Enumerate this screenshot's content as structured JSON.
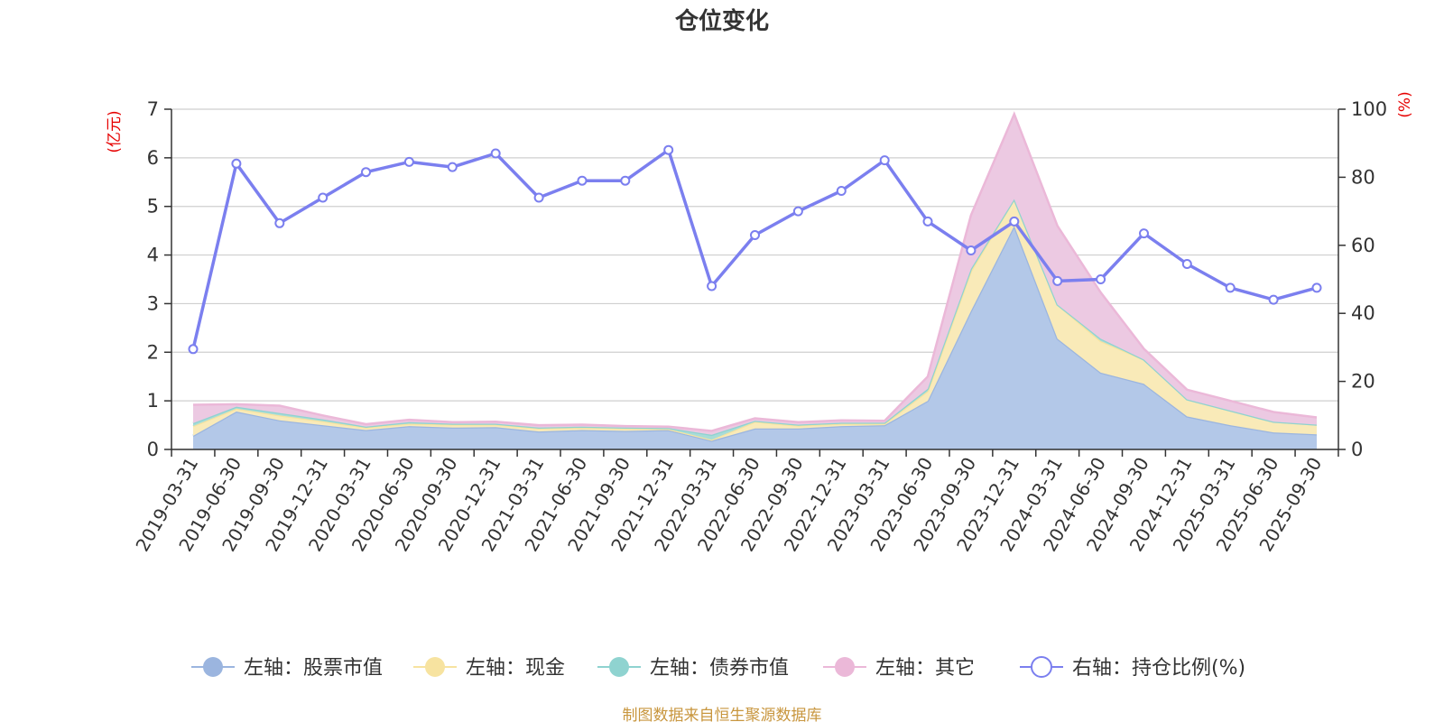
{
  "chart_data": {
    "type": "area",
    "title": "仓位变化",
    "left_axis_unit": "(亿元)",
    "right_axis_unit": "(%)",
    "categories": [
      "2019-03-31",
      "2019-06-30",
      "2019-09-30",
      "2019-12-31",
      "2020-03-31",
      "2020-06-30",
      "2020-09-30",
      "2020-12-31",
      "2021-03-31",
      "2021-06-30",
      "2021-09-30",
      "2021-12-31",
      "2022-03-31",
      "2022-06-30",
      "2022-09-30",
      "2022-12-31",
      "2023-03-31",
      "2023-06-30",
      "2023-09-30",
      "2023-12-31",
      "2024-03-31",
      "2024-06-30",
      "2024-09-30",
      "2024-12-31",
      "2025-03-31",
      "2025-06-30",
      "2025-09-30"
    ],
    "y_left": {
      "min": 0,
      "max": 7,
      "ticks": [
        "0",
        "1",
        "2",
        "3",
        "4",
        "5",
        "6",
        "7"
      ]
    },
    "y_right": {
      "min": 0,
      "max": 100,
      "ticks": [
        "0",
        "20",
        "40",
        "60",
        "80",
        "100"
      ]
    },
    "stacked_series": [
      {
        "name": "左轴：股票市值",
        "color": "#9bb5df",
        "fill": "#b3c8e8",
        "values": [
          0.28,
          0.78,
          0.6,
          0.5,
          0.4,
          0.48,
          0.45,
          0.46,
          0.37,
          0.4,
          0.38,
          0.4,
          0.18,
          0.43,
          0.43,
          0.48,
          0.5,
          1.0,
          2.85,
          4.6,
          2.28,
          1.58,
          1.35,
          0.68,
          0.5,
          0.35,
          0.31
        ]
      },
      {
        "name": "左轴：现金",
        "color": "#f7e3a0",
        "fill": "#f9eab8",
        "values": [
          0.2,
          0.06,
          0.1,
          0.08,
          0.05,
          0.05,
          0.06,
          0.05,
          0.06,
          0.05,
          0.05,
          0.02,
          0.02,
          0.14,
          0.06,
          0.05,
          0.03,
          0.2,
          0.82,
          0.55,
          0.7,
          0.65,
          0.5,
          0.35,
          0.3,
          0.22,
          0.2
        ]
      },
      {
        "name": "左轴：债券市值",
        "color": "#8fd3d0",
        "fill": "#a8dcd8",
        "values": [
          0.06,
          0.04,
          0.05,
          0.04,
          0.02,
          0.03,
          0.02,
          0.02,
          0.02,
          0.02,
          0.02,
          0.02,
          0.1,
          0.02,
          0.02,
          0.02,
          0.02,
          0.05,
          0.05,
          0.0,
          0.0,
          0.05,
          0.0,
          0.0,
          0.0,
          0.0,
          0.0
        ]
      },
      {
        "name": "左轴：其它",
        "color": "#ebb8d8",
        "fill": "#ecc9e2",
        "values": [
          0.38,
          0.05,
          0.15,
          0.08,
          0.05,
          0.05,
          0.03,
          0.04,
          0.05,
          0.04,
          0.03,
          0.03,
          0.08,
          0.05,
          0.05,
          0.05,
          0.04,
          0.25,
          1.1,
          1.75,
          1.62,
          0.95,
          0.22,
          0.2,
          0.2,
          0.2,
          0.15
        ]
      }
    ],
    "line_series": {
      "name": "右轴：持仓比例(%)",
      "color": "#7b7fef",
      "values": [
        29.5,
        84,
        66.5,
        74,
        81.5,
        84.5,
        83,
        87,
        74,
        79,
        79,
        88,
        48,
        63,
        70,
        76,
        85,
        67,
        58.5,
        67,
        49.5,
        50,
        63.5,
        54.5,
        47.5,
        44,
        47.5
      ]
    },
    "legend": [
      "左轴：股票市值",
      "左轴：现金",
      "左轴：债券市值",
      "左轴：其它",
      "右轴：持仓比例(%)"
    ],
    "source_note": "制图数据来自恒生聚源数据库"
  }
}
